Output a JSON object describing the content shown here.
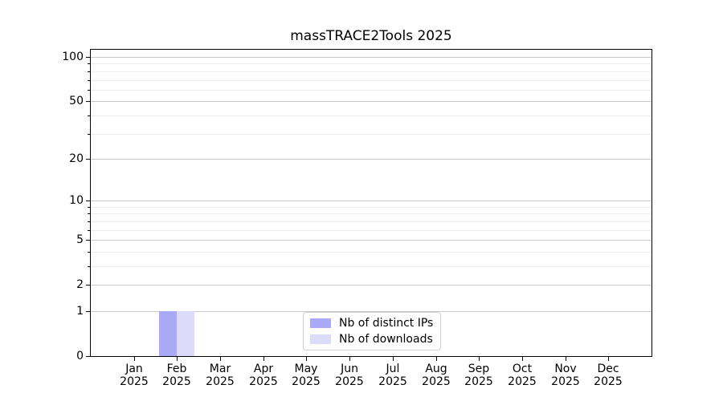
{
  "chart_data": {
    "type": "bar",
    "title": "massTRACE2Tools 2025",
    "x_categories": [
      {
        "month": "Jan",
        "year": "2025"
      },
      {
        "month": "Feb",
        "year": "2025"
      },
      {
        "month": "Mar",
        "year": "2025"
      },
      {
        "month": "Apr",
        "year": "2025"
      },
      {
        "month": "May",
        "year": "2025"
      },
      {
        "month": "Jun",
        "year": "2025"
      },
      {
        "month": "Jul",
        "year": "2025"
      },
      {
        "month": "Aug",
        "year": "2025"
      },
      {
        "month": "Sep",
        "year": "2025"
      },
      {
        "month": "Oct",
        "year": "2025"
      },
      {
        "month": "Nov",
        "year": "2025"
      },
      {
        "month": "Dec",
        "year": "2025"
      }
    ],
    "series": [
      {
        "name": "Nb of distinct IPs",
        "color": "#a9a9f6",
        "values": [
          0,
          1,
          0,
          0,
          0,
          0,
          0,
          0,
          0,
          0,
          0,
          0
        ]
      },
      {
        "name": "Nb of downloads",
        "color": "#dcdcfa",
        "values": [
          0,
          1,
          0,
          0,
          0,
          0,
          0,
          0,
          0,
          0,
          0,
          0
        ]
      }
    ],
    "yscale": "log1p",
    "ylim": [
      0,
      112
    ],
    "y_major_ticks": [
      100,
      50,
      20,
      10,
      5,
      2,
      1,
      0
    ],
    "y_minor_ticks": [
      90,
      80,
      70,
      60,
      40,
      30,
      9,
      8,
      7,
      6,
      4,
      3
    ],
    "grid": {
      "major_color": "#c8c8c8",
      "minor_color": "#ededed"
    },
    "legend": {
      "position": "lower center",
      "entries": [
        "Nb of distinct IPs",
        "Nb of downloads"
      ]
    },
    "axis_color": "#000000",
    "background": "#ffffff"
  }
}
